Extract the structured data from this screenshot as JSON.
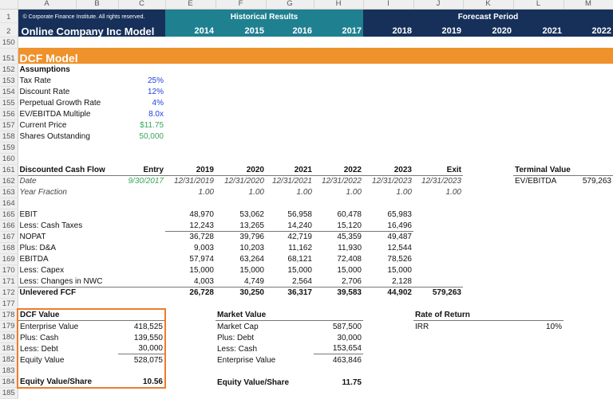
{
  "columns": [
    "A",
    "B",
    "C",
    "E",
    "F",
    "G",
    "H",
    "I",
    "J",
    "K",
    "L",
    "M"
  ],
  "header": {
    "copyright": "© Corporate Finance Institute. All rights reserved.",
    "title": "Online Company Inc Model",
    "historical_label": "Historical Results",
    "forecast_label": "Forecast Period",
    "years": {
      "E": "2014",
      "F": "2015",
      "G": "2016",
      "H": "2017",
      "I": "2018",
      "J": "2019",
      "K": "2020",
      "L": "2021",
      "M": "2022"
    }
  },
  "section_title": "DCF Model",
  "colors": {
    "navy": "#16305a",
    "teal": "#1f8090",
    "orange": "#ef922c",
    "input_blue": "#1f3fe0",
    "input_green": "#3aa65a"
  },
  "rows": [
    {
      "n": "152",
      "cells": [
        {
          "c": "A",
          "v": "Assumptions",
          "s": "bold"
        }
      ]
    },
    {
      "n": "153",
      "cells": [
        {
          "c": "A",
          "v": "Tax Rate"
        },
        {
          "c": "C",
          "v": "25%",
          "s": "input"
        }
      ]
    },
    {
      "n": "154",
      "cells": [
        {
          "c": "A",
          "v": "Discount Rate"
        },
        {
          "c": "C",
          "v": "12%",
          "s": "input"
        }
      ]
    },
    {
      "n": "155",
      "cells": [
        {
          "c": "A",
          "v": "Perpetual Growth Rate"
        },
        {
          "c": "C",
          "v": "4%",
          "s": "input"
        }
      ]
    },
    {
      "n": "156",
      "cells": [
        {
          "c": "A",
          "v": "EV/EBITDA Multiple"
        },
        {
          "c": "C",
          "v": "8.0x",
          "s": "input"
        }
      ]
    },
    {
      "n": "157",
      "cells": [
        {
          "c": "A",
          "v": "Current Price"
        },
        {
          "c": "C",
          "v": "$11.75",
          "s": "green"
        }
      ]
    },
    {
      "n": "158",
      "cells": [
        {
          "c": "A",
          "v": "Shares Outstanding"
        },
        {
          "c": "C",
          "v": "50,000",
          "s": "green"
        }
      ]
    },
    {
      "n": "159",
      "cells": []
    },
    {
      "n": "160",
      "cells": []
    },
    {
      "n": "161",
      "cells": [
        {
          "c": "A",
          "v": "Discounted Cash Flow",
          "s": "bold"
        },
        {
          "c": "C",
          "v": "Entry",
          "s": "bold"
        },
        {
          "c": "E",
          "v": "2019",
          "s": "bold"
        },
        {
          "c": "F",
          "v": "2020",
          "s": "bold"
        },
        {
          "c": "G",
          "v": "2021",
          "s": "bold"
        },
        {
          "c": "H",
          "v": "2022",
          "s": "bold"
        },
        {
          "c": "I",
          "v": "2023",
          "s": "bold"
        },
        {
          "c": "J",
          "v": "Exit",
          "s": "bold"
        },
        {
          "c": "L",
          "v": "Terminal Value",
          "s": "bold"
        }
      ]
    },
    {
      "n": "162",
      "cells": [
        {
          "c": "A",
          "v": "Date",
          "s": "italic"
        },
        {
          "c": "C",
          "v": "9/30/2017",
          "s": "greenit"
        },
        {
          "c": "E",
          "v": "12/31/2019",
          "s": "italic"
        },
        {
          "c": "F",
          "v": "12/31/2020",
          "s": "italic"
        },
        {
          "c": "G",
          "v": "12/31/2021",
          "s": "italic"
        },
        {
          "c": "H",
          "v": "12/31/2022",
          "s": "italic"
        },
        {
          "c": "I",
          "v": "12/31/2023",
          "s": "italic"
        },
        {
          "c": "J",
          "v": "12/31/2023",
          "s": "italic"
        },
        {
          "c": "L",
          "v": "EV/EBITDA"
        },
        {
          "c": "M",
          "v": "579,263"
        }
      ]
    },
    {
      "n": "163",
      "cells": [
        {
          "c": "A",
          "v": "Year Fraction",
          "s": "italic"
        },
        {
          "c": "E",
          "v": "1.00",
          "s": "italic"
        },
        {
          "c": "F",
          "v": "1.00",
          "s": "italic"
        },
        {
          "c": "G",
          "v": "1.00",
          "s": "italic"
        },
        {
          "c": "H",
          "v": "1.00",
          "s": "italic"
        },
        {
          "c": "I",
          "v": "1.00",
          "s": "italic"
        },
        {
          "c": "J",
          "v": "1.00",
          "s": "italic"
        }
      ]
    },
    {
      "n": "164",
      "cells": []
    },
    {
      "n": "165",
      "cells": [
        {
          "c": "A",
          "v": "EBIT"
        },
        {
          "c": "E",
          "v": "48,970"
        },
        {
          "c": "F",
          "v": "53,062"
        },
        {
          "c": "G",
          "v": "56,958"
        },
        {
          "c": "H",
          "v": "60,478"
        },
        {
          "c": "I",
          "v": "65,983"
        }
      ]
    },
    {
      "n": "166",
      "cells": [
        {
          "c": "A",
          "v": "Less: Cash Taxes"
        },
        {
          "c": "E",
          "v": "12,243"
        },
        {
          "c": "F",
          "v": "13,265"
        },
        {
          "c": "G",
          "v": "14,240"
        },
        {
          "c": "H",
          "v": "15,120"
        },
        {
          "c": "I",
          "v": "16,496"
        }
      ]
    },
    {
      "n": "167",
      "cells": [
        {
          "c": "A",
          "v": "NOPAT"
        },
        {
          "c": "E",
          "v": "36,728"
        },
        {
          "c": "F",
          "v": "39,796"
        },
        {
          "c": "G",
          "v": "42,719"
        },
        {
          "c": "H",
          "v": "45,359"
        },
        {
          "c": "I",
          "v": "49,487"
        }
      ]
    },
    {
      "n": "168",
      "cells": [
        {
          "c": "A",
          "v": "Plus: D&A"
        },
        {
          "c": "E",
          "v": "9,003"
        },
        {
          "c": "F",
          "v": "10,203"
        },
        {
          "c": "G",
          "v": "11,162"
        },
        {
          "c": "H",
          "v": "11,930"
        },
        {
          "c": "I",
          "v": "12,544"
        }
      ]
    },
    {
      "n": "169",
      "cells": [
        {
          "c": "A",
          "v": "EBITDA"
        },
        {
          "c": "E",
          "v": "57,974"
        },
        {
          "c": "F",
          "v": "63,264"
        },
        {
          "c": "G",
          "v": "68,121"
        },
        {
          "c": "H",
          "v": "72,408"
        },
        {
          "c": "I",
          "v": "78,526"
        }
      ]
    },
    {
      "n": "170",
      "cells": [
        {
          "c": "A",
          "v": "Less: Capex"
        },
        {
          "c": "E",
          "v": "15,000"
        },
        {
          "c": "F",
          "v": "15,000"
        },
        {
          "c": "G",
          "v": "15,000"
        },
        {
          "c": "H",
          "v": "15,000"
        },
        {
          "c": "I",
          "v": "15,000"
        }
      ]
    },
    {
      "n": "171",
      "cells": [
        {
          "c": "A",
          "v": "Less: Changes in NWC"
        },
        {
          "c": "E",
          "v": "4,003"
        },
        {
          "c": "F",
          "v": "4,749"
        },
        {
          "c": "G",
          "v": "2,564"
        },
        {
          "c": "H",
          "v": "2,706"
        },
        {
          "c": "I",
          "v": "2,128"
        }
      ]
    },
    {
      "n": "172",
      "cells": [
        {
          "c": "A",
          "v": "Unlevered FCF",
          "s": "bold"
        },
        {
          "c": "E",
          "v": "26,728",
          "s": "bold"
        },
        {
          "c": "F",
          "v": "30,250",
          "s": "bold"
        },
        {
          "c": "G",
          "v": "36,317",
          "s": "bold"
        },
        {
          "c": "H",
          "v": "39,583",
          "s": "bold"
        },
        {
          "c": "I",
          "v": "44,902",
          "s": "bold"
        },
        {
          "c": "J",
          "v": "579,263",
          "s": "bold"
        }
      ]
    },
    {
      "n": "177",
      "cells": []
    },
    {
      "n": "178",
      "cells": [
        {
          "c": "A",
          "v": "DCF Value",
          "s": "bold"
        },
        {
          "c": "F",
          "v": "Market Value",
          "s": "bold"
        },
        {
          "c": "J",
          "v": "Rate of Return",
          "s": "bold"
        }
      ]
    },
    {
      "n": "179",
      "cells": [
        {
          "c": "A",
          "v": "Enterprise Value"
        },
        {
          "c": "C",
          "v": "418,525"
        },
        {
          "c": "F",
          "v": "Market Cap"
        },
        {
          "c": "H",
          "v": "587,500"
        },
        {
          "c": "J",
          "v": "IRR"
        },
        {
          "c": "L",
          "v": "10%"
        }
      ]
    },
    {
      "n": "180",
      "cells": [
        {
          "c": "A",
          "v": "Plus: Cash"
        },
        {
          "c": "C",
          "v": "139,550"
        },
        {
          "c": "F",
          "v": "Plus: Debt"
        },
        {
          "c": "H",
          "v": "30,000"
        }
      ]
    },
    {
      "n": "181",
      "cells": [
        {
          "c": "A",
          "v": "Less: Debt"
        },
        {
          "c": "C",
          "v": "30,000"
        },
        {
          "c": "F",
          "v": "Less: Cash"
        },
        {
          "c": "H",
          "v": "153,654"
        }
      ]
    },
    {
      "n": "182",
      "cells": [
        {
          "c": "A",
          "v": "Equity Value"
        },
        {
          "c": "C",
          "v": "528,075"
        },
        {
          "c": "F",
          "v": "Enterprise Value"
        },
        {
          "c": "H",
          "v": "463,846"
        }
      ]
    },
    {
      "n": "183",
      "cells": []
    },
    {
      "n": "184",
      "cells": [
        {
          "c": "A",
          "v": "Equity Value/Share",
          "s": "bold"
        },
        {
          "c": "C",
          "v": "10.56",
          "s": "bold"
        },
        {
          "c": "F",
          "v": "Equity Value/Share",
          "s": "bold"
        },
        {
          "c": "H",
          "v": "11.75",
          "s": "bold"
        }
      ]
    },
    {
      "n": "185",
      "cells": []
    }
  ]
}
